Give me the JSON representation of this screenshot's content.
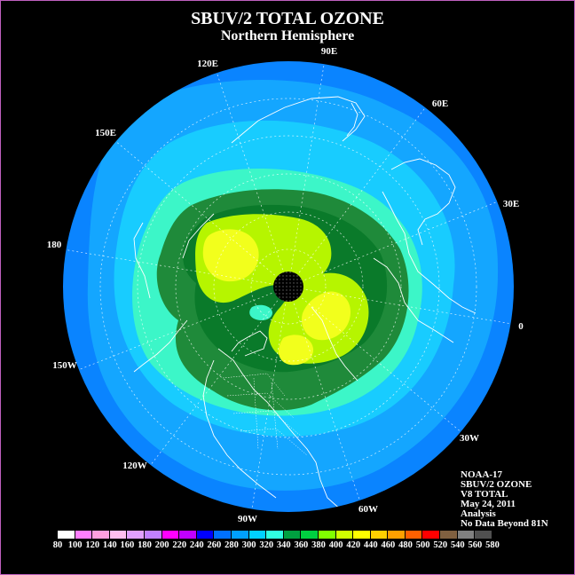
{
  "title": "SBUV/2 TOTAL OZONE",
  "subtitle": "Northern Hemisphere",
  "longitude_labels": [
    "90E",
    "60E",
    "30E",
    "0",
    "30W",
    "60W",
    "90W",
    "120W",
    "150W",
    "180",
    "150E",
    "120E"
  ],
  "info_lines": [
    "NOAA-17",
    "SBUV/2 OZONE",
    "V8 TOTAL",
    "May 24, 2011",
    "Analysis",
    "No Data Beyond 81N"
  ],
  "colorbar": {
    "ticks": [
      "80",
      "100",
      "120",
      "140",
      "160",
      "180",
      "200",
      "220",
      "240",
      "260",
      "280",
      "300",
      "320",
      "340",
      "360",
      "380",
      "400",
      "420",
      "440",
      "460",
      "480",
      "500",
      "520",
      "540",
      "560",
      "580"
    ],
    "colors": [
      "#ffffff",
      "#ff7fff",
      "#ff9fdf",
      "#ffbfef",
      "#e0a0ff",
      "#c080ff",
      "#ff00ff",
      "#c000ff",
      "#0000ff",
      "#0070ff",
      "#00a0ff",
      "#00d0ff",
      "#30ffe0",
      "#00a040",
      "#00d040",
      "#80ff00",
      "#d0ff00",
      "#ffff00",
      "#ffd000",
      "#ffa000",
      "#ff6000",
      "#ff0000",
      "#806040",
      "#808080",
      "#505050"
    ]
  },
  "colors": {
    "ocean_blue": "#0a84ff",
    "light_blue": "#14a6ff",
    "cyan": "#18ccff",
    "aqua": "#3cf6c8",
    "dark_green": "#1f8a3a",
    "green": "#0a7a2a",
    "lime": "#b6f500",
    "yellow": "#f2ff1c",
    "pole": "#000000"
  }
}
